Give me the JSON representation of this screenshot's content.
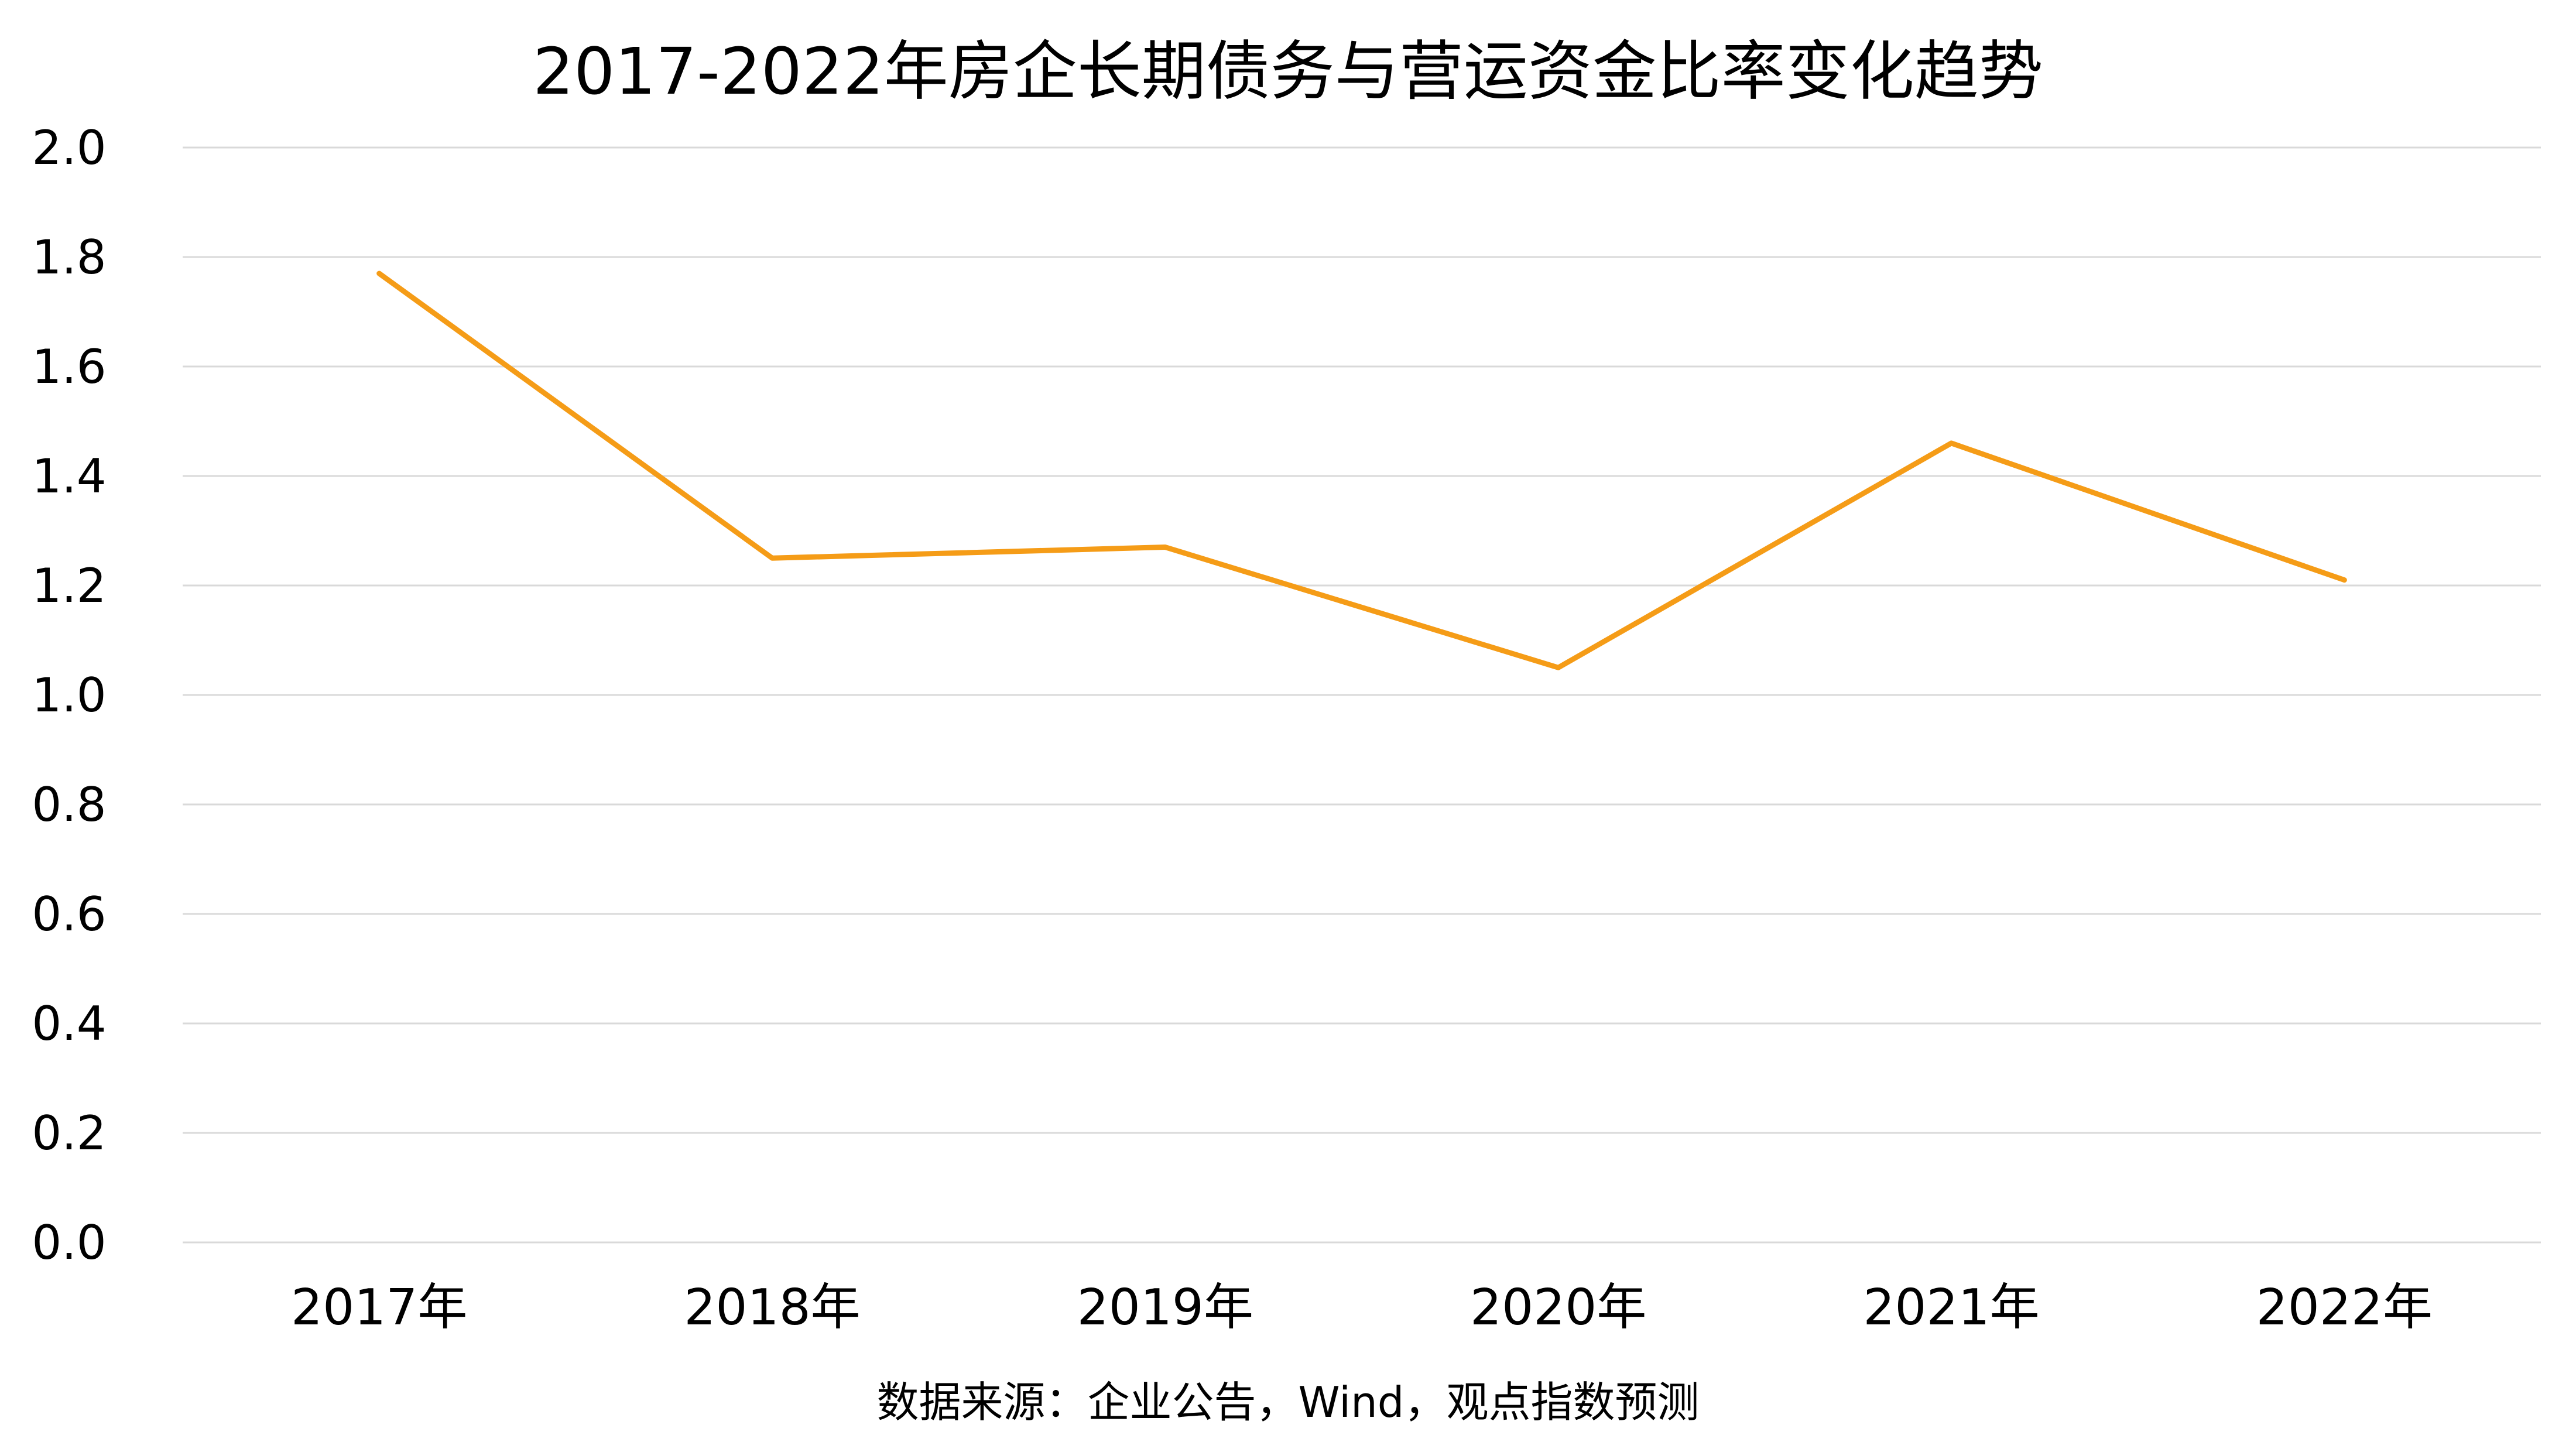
{
  "chart_data": {
    "type": "line",
    "title": "2017-2022年房企长期债务与营运资金比率变化趋势",
    "xlabel": "",
    "ylabel": "",
    "categories": [
      "2017年",
      "2018年",
      "2019年",
      "2020年",
      "2021年",
      "2022年"
    ],
    "series": [
      {
        "values": [
          1.77,
          1.25,
          1.27,
          1.05,
          1.46,
          1.21
        ],
        "color": "#f59c17"
      }
    ],
    "ylim": [
      0,
      2.0
    ],
    "yticks": [
      "0.0",
      "0.2",
      "0.4",
      "0.6",
      "0.8",
      "1.0",
      "1.2",
      "1.4",
      "1.6",
      "1.8",
      "2.0"
    ],
    "grid": true,
    "legend": "none",
    "source_note": "数据来源：企业公告，Wind，观点指数预测"
  }
}
